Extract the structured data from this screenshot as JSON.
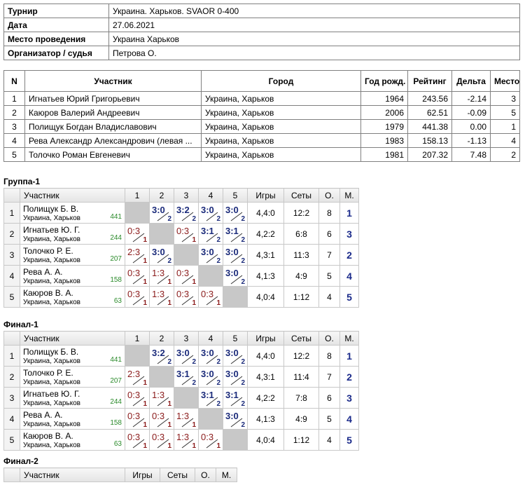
{
  "info": {
    "rows": [
      [
        "Турнир",
        "Украина. Харьков. SVAOR 0-400"
      ],
      [
        "Дата",
        "27.06.2021"
      ],
      [
        "Место проведения",
        "Украина Харьков"
      ],
      [
        "Организатор / судья",
        "Петрова О."
      ]
    ]
  },
  "participants": {
    "header": [
      "N",
      "Участник",
      "Город",
      "Год рожд.",
      "Рейтинг",
      "Дельта",
      "Место"
    ],
    "rows": [
      [
        "1",
        "Игнатьев Юрий Григорьевич",
        "Украина, Харьков",
        "1964",
        "243.56",
        "-2.14",
        "3"
      ],
      [
        "2",
        "Каюров Валерий Андреевич",
        "Украина, Харьков",
        "2006",
        "62.51",
        "-0.09",
        "5"
      ],
      [
        "3",
        "Полищук Богдан Владиславович",
        "Украина, Харьков",
        "1979",
        "441.38",
        "0.00",
        "1"
      ],
      [
        "4",
        "Рева Александр Александрович (левая ...",
        "Украина, Харьков",
        "1983",
        "158.13",
        "-1.13",
        "4"
      ],
      [
        "5",
        "Толочко Роман Евгеневич",
        "Украина, Харьков",
        "1981",
        "207.32",
        "7.48",
        "2"
      ]
    ]
  },
  "groups": [
    {
      "title": "Группа-1",
      "header": [
        "Участник",
        "1",
        "2",
        "3",
        "4",
        "5",
        "Игры",
        "Сеты",
        "О.",
        "М."
      ],
      "rows": [
        {
          "n": "1",
          "name": "Полищук Б. В.",
          "city": "Украина, Харьков",
          "rating": "441",
          "results": [
            null,
            {
              "score": "3:0",
              "points": "2"
            },
            {
              "score": "3:2",
              "points": "2"
            },
            {
              "score": "3:0",
              "points": "2"
            },
            {
              "score": "3:0",
              "points": "2"
            }
          ],
          "games": "4,4:0",
          "sets": "12:2",
          "points": "8",
          "place": "1"
        },
        {
          "n": "2",
          "name": "Игнатьев Ю. Г.",
          "city": "Украина, Харьков",
          "rating": "244",
          "results": [
            {
              "score": "0:3",
              "points": "1"
            },
            null,
            {
              "score": "0:3",
              "points": "1"
            },
            {
              "score": "3:1",
              "points": "2"
            },
            {
              "score": "3:1",
              "points": "2"
            }
          ],
          "games": "4,2:2",
          "sets": "6:8",
          "points": "6",
          "place": "3"
        },
        {
          "n": "3",
          "name": "Толочко Р. Е.",
          "city": "Украина, Харьков",
          "rating": "207",
          "results": [
            {
              "score": "2:3",
              "points": "1"
            },
            {
              "score": "3:0",
              "points": "2"
            },
            null,
            {
              "score": "3:0",
              "points": "2"
            },
            {
              "score": "3:0",
              "points": "2"
            }
          ],
          "games": "4,3:1",
          "sets": "11:3",
          "points": "7",
          "place": "2"
        },
        {
          "n": "4",
          "name": "Рева А. А.",
          "city": "Украина, Харьков",
          "rating": "158",
          "results": [
            {
              "score": "0:3",
              "points": "1"
            },
            {
              "score": "1:3",
              "points": "1"
            },
            {
              "score": "0:3",
              "points": "1"
            },
            null,
            {
              "score": "3:0",
              "points": "2"
            }
          ],
          "games": "4,1:3",
          "sets": "4:9",
          "points": "5",
          "place": "4"
        },
        {
          "n": "5",
          "name": "Каюров В. А.",
          "city": "Украина, Харьков",
          "rating": "63",
          "results": [
            {
              "score": "0:3",
              "points": "1"
            },
            {
              "score": "1:3",
              "points": "1"
            },
            {
              "score": "0:3",
              "points": "1"
            },
            {
              "score": "0:3",
              "points": "1"
            },
            null
          ],
          "games": "4,0:4",
          "sets": "1:12",
          "points": "4",
          "place": "5"
        }
      ]
    },
    {
      "title": "Финал-1",
      "header": [
        "Участник",
        "1",
        "2",
        "3",
        "4",
        "5",
        "Игры",
        "Сеты",
        "О.",
        "М."
      ],
      "rows": [
        {
          "n": "1",
          "name": "Полищук Б. В.",
          "city": "Украина, Харьков",
          "rating": "441",
          "results": [
            null,
            {
              "score": "3:2",
              "points": "2"
            },
            {
              "score": "3:0",
              "points": "2"
            },
            {
              "score": "3:0",
              "points": "2"
            },
            {
              "score": "3:0",
              "points": "2"
            }
          ],
          "games": "4,4:0",
          "sets": "12:2",
          "points": "8",
          "place": "1"
        },
        {
          "n": "2",
          "name": "Толочко Р. Е.",
          "city": "Украина, Харьков",
          "rating": "207",
          "results": [
            {
              "score": "2:3",
              "points": "1"
            },
            null,
            {
              "score": "3:1",
              "points": "2"
            },
            {
              "score": "3:0",
              "points": "2"
            },
            {
              "score": "3:0",
              "points": "2"
            }
          ],
          "games": "4,3:1",
          "sets": "11:4",
          "points": "7",
          "place": "2"
        },
        {
          "n": "3",
          "name": "Игнатьев Ю. Г.",
          "city": "Украина, Харьков",
          "rating": "244",
          "results": [
            {
              "score": "0:3",
              "points": "1"
            },
            {
              "score": "1:3",
              "points": "1"
            },
            null,
            {
              "score": "3:1",
              "points": "2"
            },
            {
              "score": "3:1",
              "points": "2"
            }
          ],
          "games": "4,2:2",
          "sets": "7:8",
          "points": "6",
          "place": "3"
        },
        {
          "n": "4",
          "name": "Рева А. А.",
          "city": "Украина, Харьков",
          "rating": "158",
          "results": [
            {
              "score": "0:3",
              "points": "1"
            },
            {
              "score": "0:3",
              "points": "1"
            },
            {
              "score": "1:3",
              "points": "1"
            },
            null,
            {
              "score": "3:0",
              "points": "2"
            }
          ],
          "games": "4,1:3",
          "sets": "4:9",
          "points": "5",
          "place": "4"
        },
        {
          "n": "5",
          "name": "Каюров В. А.",
          "city": "Украина, Харьков",
          "rating": "63",
          "results": [
            {
              "score": "0:3",
              "points": "1"
            },
            {
              "score": "0:3",
              "points": "1"
            },
            {
              "score": "1:3",
              "points": "1"
            },
            {
              "score": "0:3",
              "points": "1"
            },
            null
          ],
          "games": "4,0:4",
          "sets": "1:12",
          "points": "4",
          "place": "5"
        }
      ]
    },
    {
      "title": "Финал-2",
      "header": [
        "Участник",
        "Игры",
        "Сеты",
        "О.",
        "М."
      ],
      "rows": []
    }
  ]
}
